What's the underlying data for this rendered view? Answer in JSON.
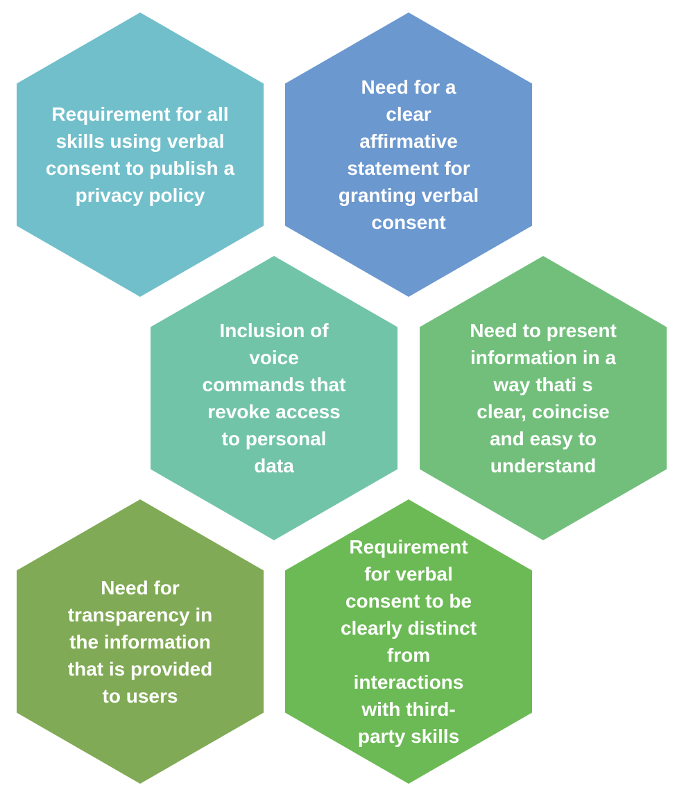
{
  "hexagons": [
    {
      "text": "Requirement for all\nskills using verbal\nconsent to publish a\nprivacy policy",
      "color": "#71BFCB"
    },
    {
      "text": "Need for a\nclear\naffirmative\nstatement for\ngranting verbal\nconsent",
      "color": "#6B98CF"
    },
    {
      "text": "Inclusion of\nvoice\ncommands that\nrevoke access\nto personal\ndata",
      "color": "#72C4A9"
    },
    {
      "text": "Need to present\ninformation in a\nway thati s\nclear, coincise\nand easy to\nunderstand",
      "color": "#72BF7C"
    },
    {
      "text": "Need for\ntransparency in\nthe information\nthat is provided\nto users",
      "color": "#80AA55"
    },
    {
      "text": "Requirement\nfor verbal\nconsent to be\nclearly distinct\nfrom\ninteractions\nwith third-\nparty skills",
      "color": "#6CBA55"
    }
  ]
}
